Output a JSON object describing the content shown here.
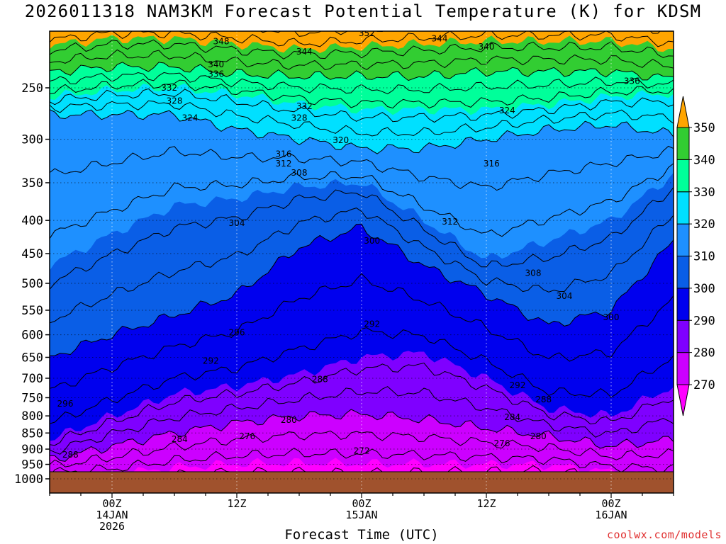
{
  "chart_data": {
    "type": "heatmap",
    "title": "2026011318 NAM3KM Forecast Potential Temperature (K) for KDSM",
    "xlabel": "Forecast Time (UTC)",
    "ylabel": "",
    "credit": "coolwx.com/models",
    "y_axis": {
      "range": [
        1000,
        200
      ],
      "scale": "log-pressure",
      "ticks": [
        "250",
        "300",
        "350",
        "400",
        "450",
        "500",
        "550",
        "600",
        "650",
        "700",
        "750",
        "800",
        "850",
        "900",
        "950",
        "1000"
      ],
      "tick_values": [
        250,
        300,
        350,
        400,
        450,
        500,
        550,
        600,
        650,
        700,
        750,
        800,
        850,
        900,
        950,
        1000
      ]
    },
    "x_axis": {
      "range_hours": [
        0,
        60
      ],
      "ticks": [
        {
          "hour": 6,
          "lines": [
            "00Z",
            "14JAN",
            "2026"
          ]
        },
        {
          "hour": 18,
          "lines": [
            "12Z"
          ]
        },
        {
          "hour": 30,
          "lines": [
            "00Z",
            "15JAN"
          ]
        },
        {
          "hour": 42,
          "lines": [
            "12Z"
          ]
        },
        {
          "hour": 54,
          "lines": [
            "00Z",
            "16JAN"
          ]
        }
      ]
    },
    "grid": true,
    "ground_color": "#a0522d",
    "colorbar": {
      "levels": [
        270,
        280,
        290,
        300,
        310,
        320,
        330,
        340,
        350
      ],
      "labels": [
        "270",
        "280",
        "290",
        "300",
        "310",
        "320",
        "330",
        "340",
        "350"
      ],
      "colors": [
        "#ff00ff",
        "#cc00ff",
        "#7f00ff",
        "#0000ee",
        "#0a5ee6",
        "#1e90ff",
        "#00e0ff",
        "#00ff9a",
        "#32cd32",
        "#ffff00",
        "#ffa500"
      ]
    },
    "isentropes": [
      {
        "theta": 270,
        "pressure_by_hour": {
          "0": 990,
          "6": 985,
          "12": 960,
          "18": 948,
          "24": 945,
          "30": 948,
          "36": 948,
          "42": 950,
          "48": 952,
          "54": 975,
          "60": 990
        }
      },
      {
        "theta": 280,
        "pressure_by_hour": {
          "0": 935,
          "6": 890,
          "12": 850,
          "18": 820,
          "24": 800,
          "30": 795,
          "36": 810,
          "42": 835,
          "48": 860,
          "54": 890,
          "60": 870
        }
      },
      {
        "theta": 290,
        "pressure_by_hour": {
          "0": 870,
          "6": 800,
          "12": 740,
          "18": 720,
          "24": 690,
          "30": 650,
          "36": 640,
          "42": 700,
          "48": 780,
          "54": 800,
          "60": 720
        }
      },
      {
        "theta": 300,
        "pressure_by_hour": {
          "0": 650,
          "6": 600,
          "12": 560,
          "18": 520,
          "24": 440,
          "30": 410,
          "36": 470,
          "42": 520,
          "48": 580,
          "54": 550,
          "60": 430
        }
      },
      {
        "theta": 310,
        "pressure_by_hour": {
          "0": 470,
          "6": 420,
          "12": 380,
          "18": 370,
          "24": 355,
          "30": 350,
          "36": 400,
          "42": 460,
          "48": 430,
          "54": 400,
          "60": 340
        }
      },
      {
        "theta": 320,
        "pressure_by_hour": {
          "0": 275,
          "6": 275,
          "12": 275,
          "18": 290,
          "24": 300,
          "30": 310,
          "36": 310,
          "42": 300,
          "48": 290,
          "54": 285,
          "60": 295
        }
      },
      {
        "theta": 330,
        "pressure_by_hour": {
          "0": 258,
          "6": 252,
          "12": 250,
          "18": 256,
          "24": 265,
          "30": 270,
          "36": 270,
          "42": 270,
          "48": 265,
          "54": 258,
          "60": 255
        }
      },
      {
        "theta": 340,
        "pressure_by_hour": {
          "0": 236,
          "6": 232,
          "12": 232,
          "18": 238,
          "24": 240,
          "30": 240,
          "36": 240,
          "42": 236,
          "48": 236,
          "54": 236,
          "60": 242
        }
      },
      {
        "theta": 350,
        "pressure_by_hour": {
          "0": 215,
          "6": 210,
          "12": 210,
          "18": 214,
          "24": 218,
          "30": 216,
          "36": 214,
          "42": 212,
          "48": 212,
          "54": 212,
          "60": 218
        }
      }
    ],
    "contour_labels": [
      {
        "text": "352",
        "hour": 30.5,
        "p": 206
      },
      {
        "text": "348",
        "hour": 16.5,
        "p": 212
      },
      {
        "text": "344",
        "hour": 37.5,
        "p": 210
      },
      {
        "text": "344",
        "hour": 24.5,
        "p": 220
      },
      {
        "text": "340",
        "hour": 42,
        "p": 216
      },
      {
        "text": "340",
        "hour": 16,
        "p": 230
      },
      {
        "text": "336",
        "hour": 16,
        "p": 238
      },
      {
        "text": "336",
        "hour": 56,
        "p": 244
      },
      {
        "text": "332",
        "hour": 11.5,
        "p": 250
      },
      {
        "text": "332",
        "hour": 24.5,
        "p": 267
      },
      {
        "text": "328",
        "hour": 12,
        "p": 262
      },
      {
        "text": "328",
        "hour": 24,
        "p": 278
      },
      {
        "text": "324",
        "hour": 13.5,
        "p": 278
      },
      {
        "text": "324",
        "hour": 44,
        "p": 271
      },
      {
        "text": "320",
        "hour": 28,
        "p": 301
      },
      {
        "text": "316",
        "hour": 22.5,
        "p": 316
      },
      {
        "text": "316",
        "hour": 42.5,
        "p": 327
      },
      {
        "text": "312",
        "hour": 22.5,
        "p": 327
      },
      {
        "text": "312",
        "hour": 38.5,
        "p": 402
      },
      {
        "text": "308",
        "hour": 24,
        "p": 338
      },
      {
        "text": "308",
        "hour": 46.5,
        "p": 482
      },
      {
        "text": "304",
        "hour": 18,
        "p": 404
      },
      {
        "text": "304",
        "hour": 49.5,
        "p": 523
      },
      {
        "text": "300",
        "hour": 31,
        "p": 430
      },
      {
        "text": "300",
        "hour": 54,
        "p": 564
      },
      {
        "text": "296",
        "hour": 18,
        "p": 595
      },
      {
        "text": "296",
        "hour": 1.5,
        "p": 766
      },
      {
        "text": "292",
        "hour": 31,
        "p": 578
      },
      {
        "text": "292",
        "hour": 15.5,
        "p": 658
      },
      {
        "text": "292",
        "hour": 45,
        "p": 718
      },
      {
        "text": "288",
        "hour": 26,
        "p": 703
      },
      {
        "text": "288",
        "hour": 47.5,
        "p": 755
      },
      {
        "text": "288",
        "hour": 2,
        "p": 918
      },
      {
        "text": "284",
        "hour": 12.5,
        "p": 869
      },
      {
        "text": "284",
        "hour": 44.5,
        "p": 804
      },
      {
        "text": "280",
        "hour": 23,
        "p": 812
      },
      {
        "text": "280",
        "hour": 47,
        "p": 860
      },
      {
        "text": "276",
        "hour": 19,
        "p": 860
      },
      {
        "text": "276",
        "hour": 43.5,
        "p": 882
      },
      {
        "text": "272",
        "hour": 30,
        "p": 905
      }
    ]
  }
}
